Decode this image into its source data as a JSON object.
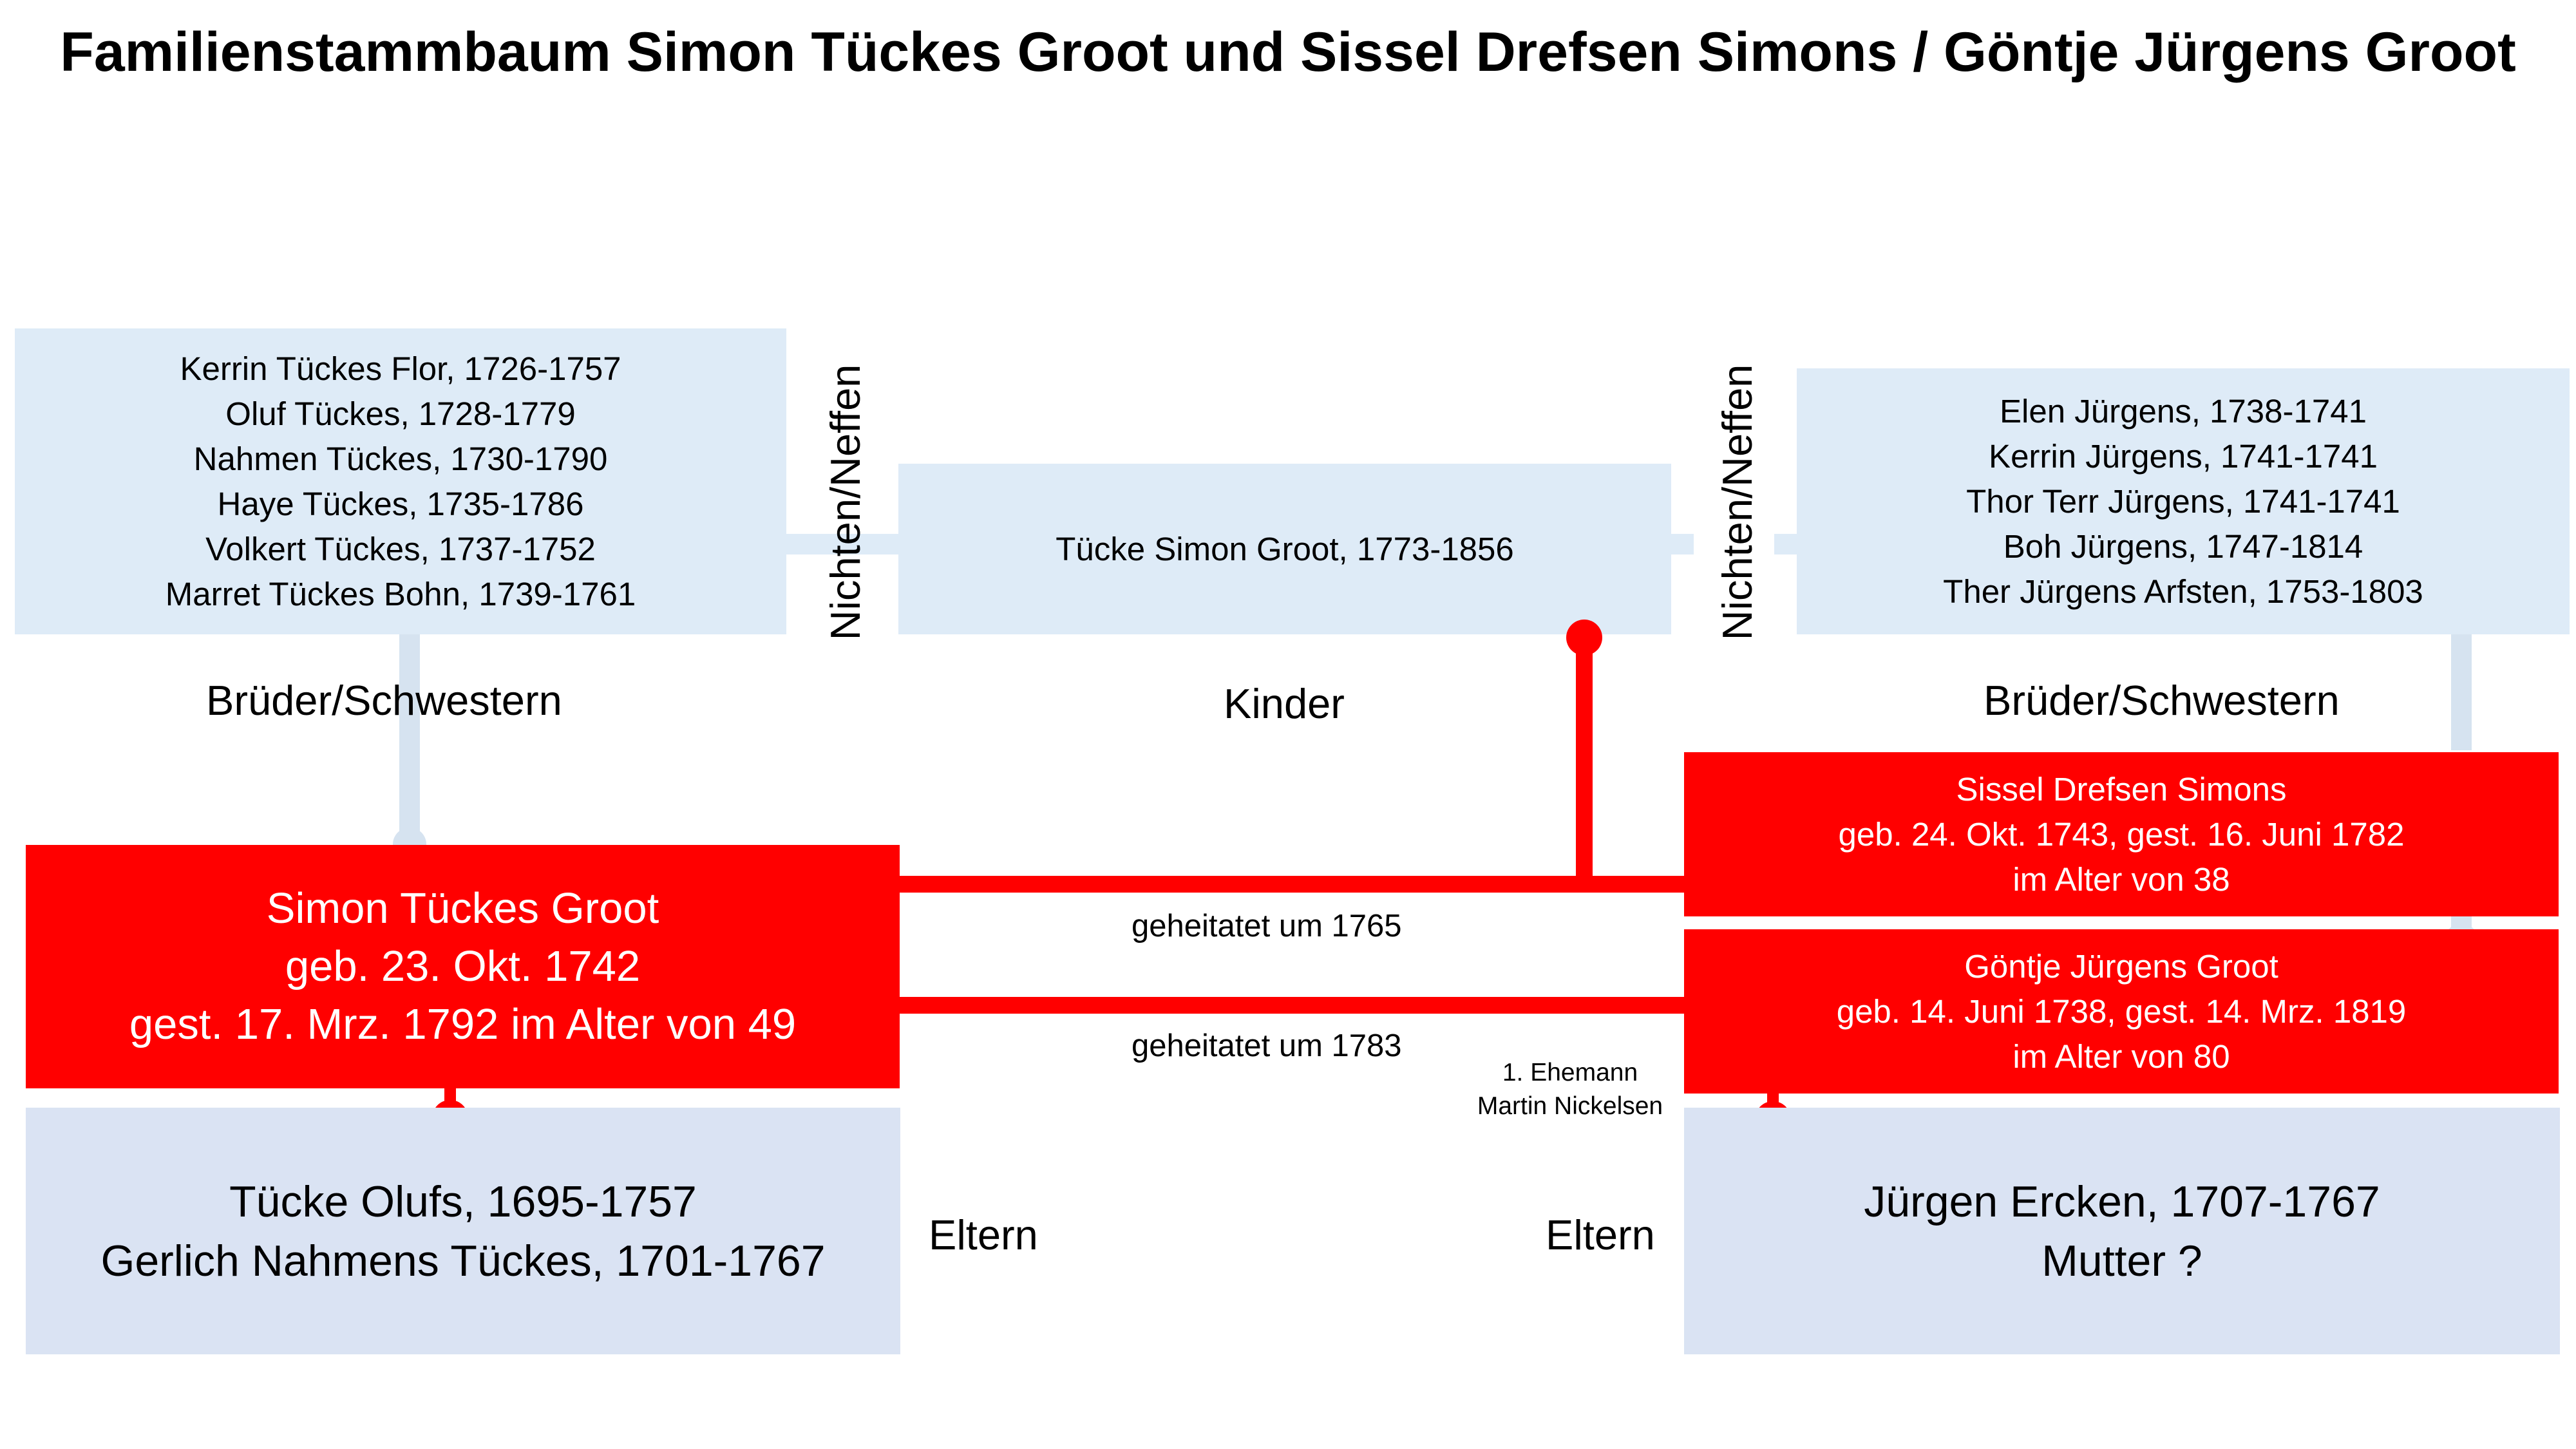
{
  "title": "Familienstammbaum Simon Tückes Groot  und Sissel Drefsen Simons / Göntje Jürgens Groot",
  "colors": {
    "light": "#deebf7",
    "lightParents": "#dae3f3",
    "red": "#ff0000",
    "connector": "#d6e3f0"
  },
  "left_siblings": [
    "Kerrin Tückes Flor, 1726-1757",
    "Oluf Tückes, 1728-1779",
    "Nahmen Tückes, 1730-1790",
    "Haye Tückes, 1735-1786",
    "Volkert Tückes, 1737-1752",
    "Marret Tückes Bohn, 1739-1761"
  ],
  "right_siblings": [
    "Elen Jürgens, 1738-1741",
    "Kerrin Jürgens, 1741-1741",
    "Thor Terr Jürgens, 1741-1741",
    "Boh Jürgens, 1747-1814",
    "Ther Jürgens Arfsten, 1753-1803"
  ],
  "child": "Tücke Simon Groot, 1773-1856",
  "labels": {
    "siblings_left": "Brüder/Schwestern",
    "siblings_right": "Brüder/Schwestern",
    "children": "Kinder",
    "nieces_left": "Nichten/Neffen",
    "nieces_right": "Nichten/Neffen",
    "parents_left": "Eltern",
    "parents_right": "Eltern",
    "married1": "geheitatet um 1765",
    "married2": "geheitatet um 1783",
    "first_husband_1": "1. Ehemann",
    "first_husband_2": "Martin Nickelsen"
  },
  "simon": [
    "Simon Tückes Groot",
    "geb. 23. Okt. 1742",
    "gest. 17. Mrz. 1792 im Alter von 49"
  ],
  "sissel": [
    "Sissel Drefsen Simons",
    "geb. 24. Okt. 1743, gest. 16. Juni 1782",
    "im Alter von 38"
  ],
  "goentje": [
    "Göntje Jürgens Groot",
    "geb. 14. Juni 1738, gest. 14. Mrz. 1819",
    "im Alter von 80"
  ],
  "left_parents": [
    "Tücke Olufs, 1695-1757",
    "Gerlich Nahmens Tückes, 1701-1767"
  ],
  "right_parents": [
    "Jürgen Ercken, 1707-1767",
    "Mutter ?"
  ]
}
